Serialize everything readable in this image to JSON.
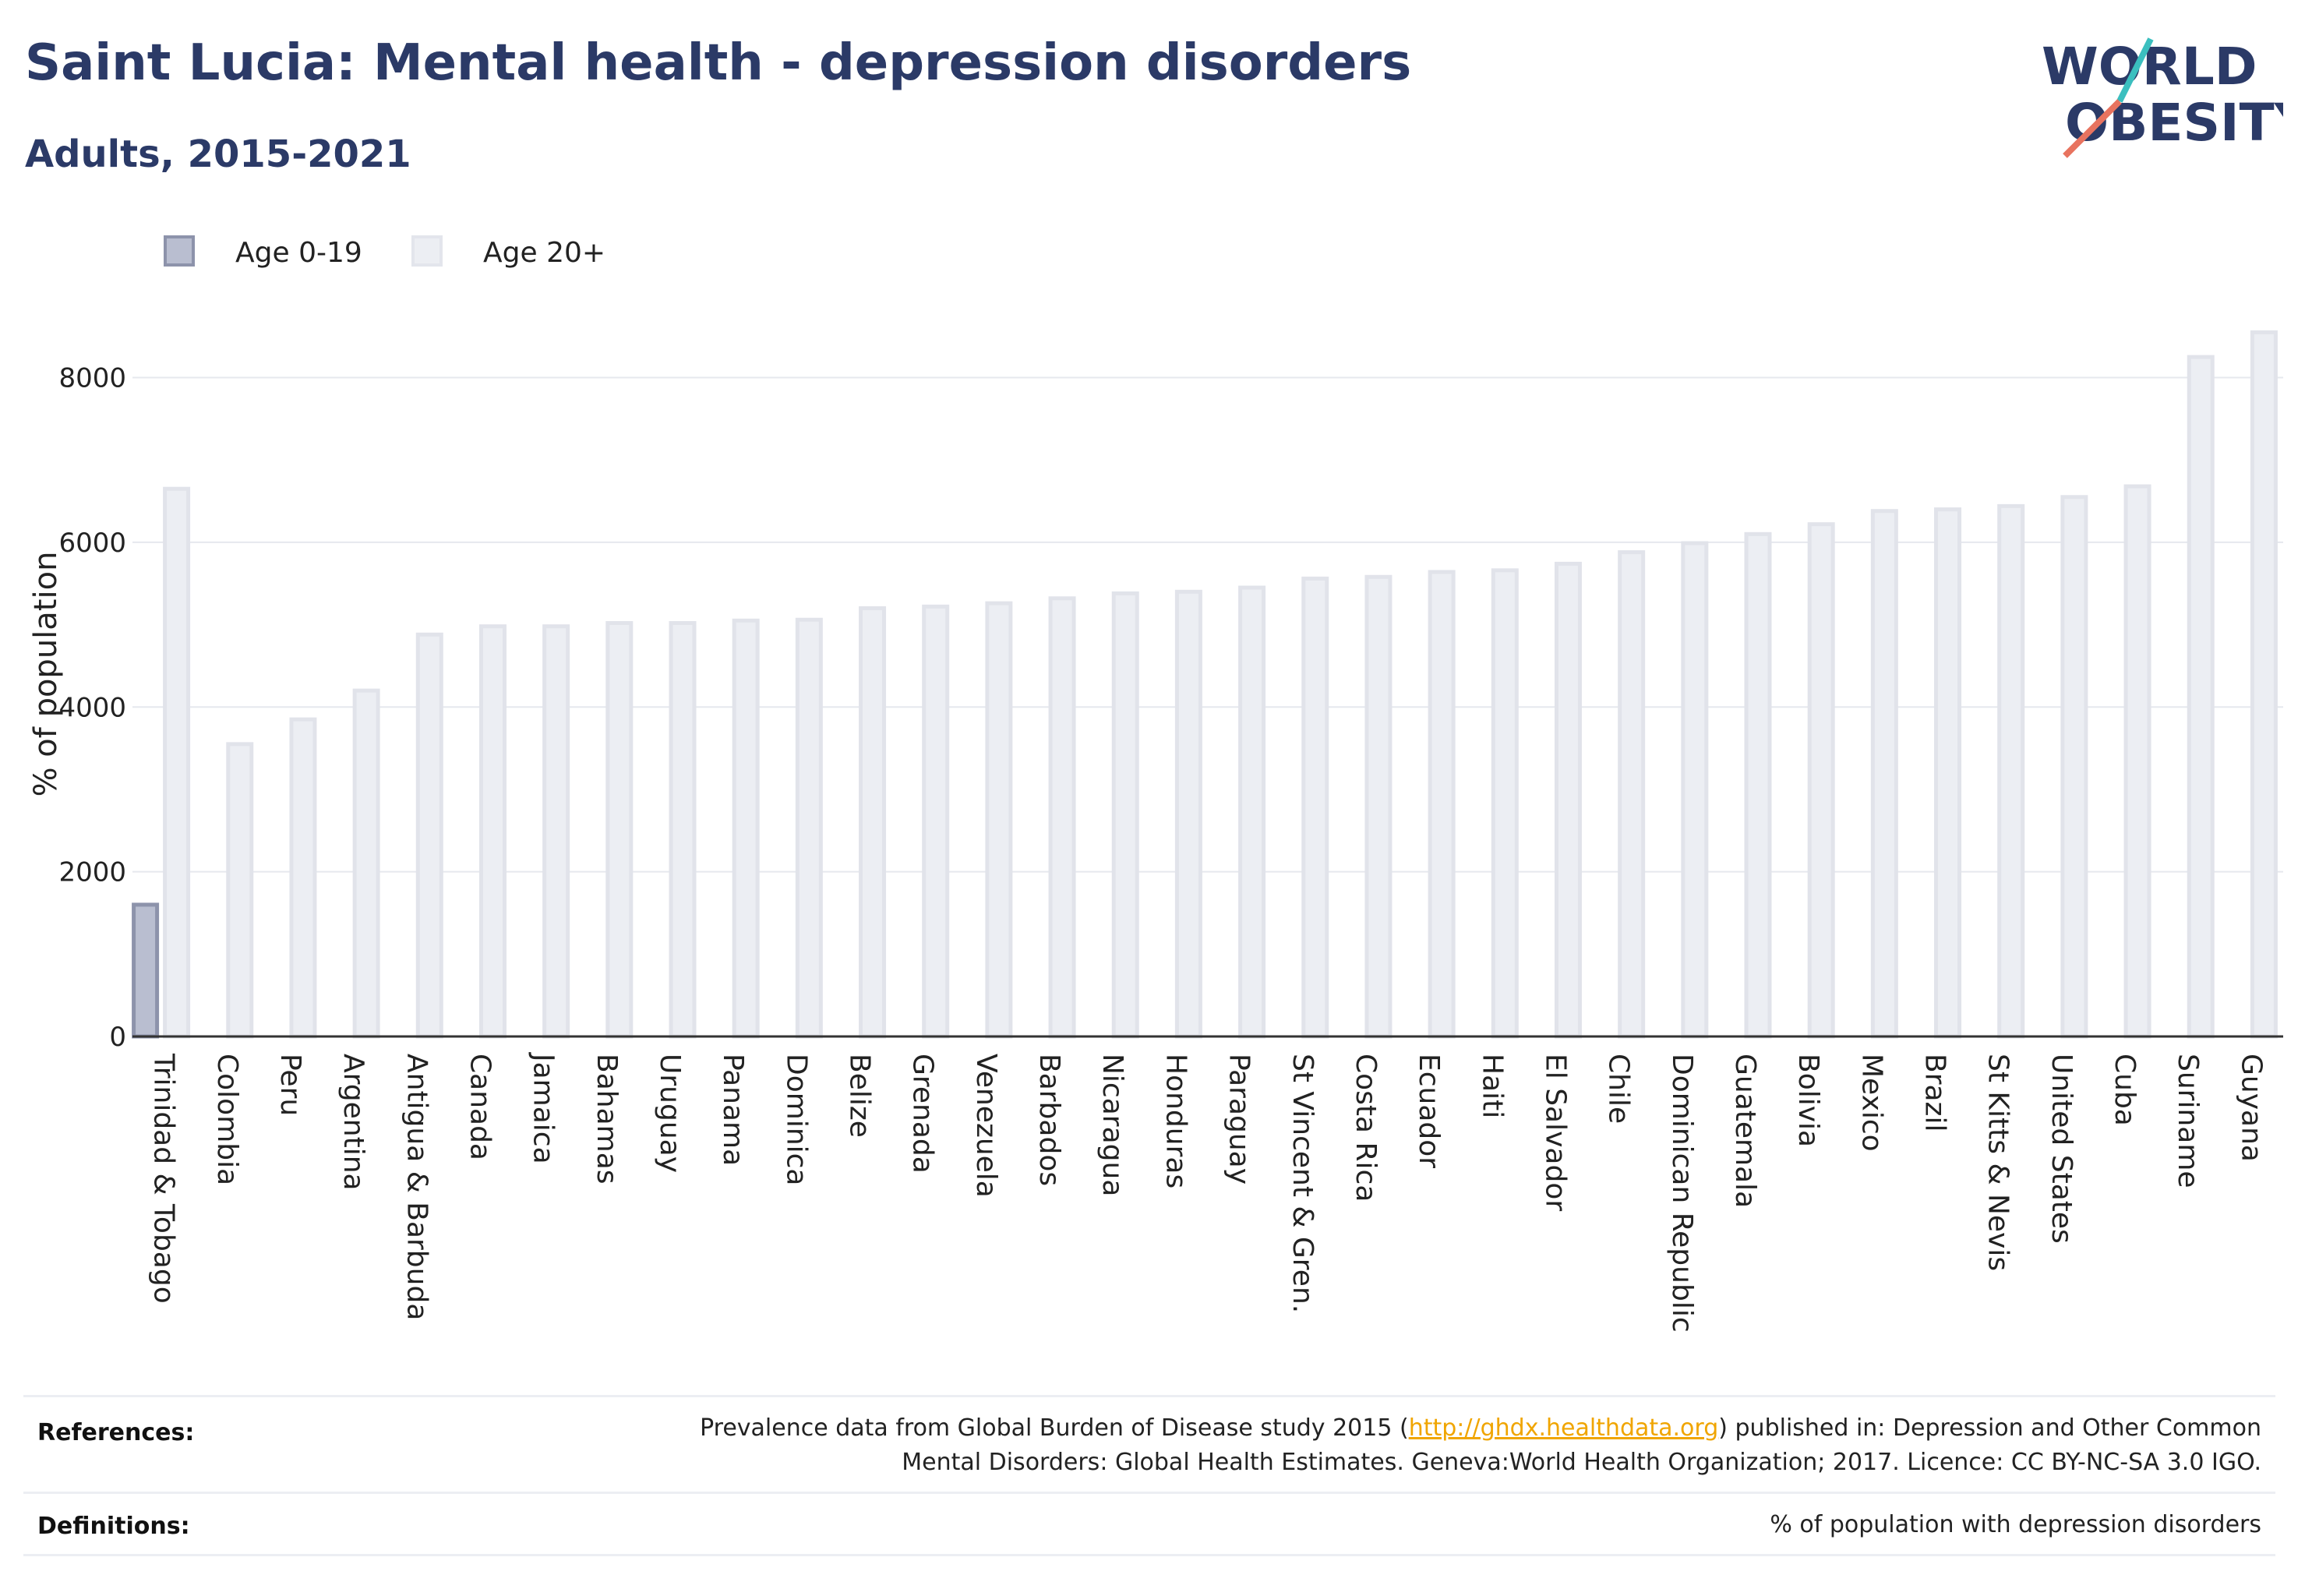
{
  "header": {
    "title": "Saint Lucia: Mental health - depression disorders",
    "subtitle": "Adults, 2015-2021"
  },
  "logo": {
    "line1": "WORLD",
    "line2": "OBESITY",
    "accent_teal": "#3bbfbf",
    "accent_coral": "#e8735f",
    "text_color": "#2b3a67"
  },
  "legend": {
    "items": [
      {
        "label": "Age 0-19",
        "color": "#9aa1b9"
      },
      {
        "label": "Age 20+",
        "color": "#e9ebf0"
      }
    ]
  },
  "chart_data": {
    "type": "bar",
    "ylabel": "% of population",
    "xlabel": "",
    "ylim": [
      0,
      8800
    ],
    "yticks": [
      0,
      2000,
      4000,
      6000,
      8000
    ],
    "grid": true,
    "legend_position": "top-left",
    "categories": [
      "Trinidad & Tobago",
      "Colombia",
      "Peru",
      "Argentina",
      "Antigua & Barbuda",
      "Canada",
      "Jamaica",
      "Bahamas",
      "Uruguay",
      "Panama",
      "Dominica",
      "Belize",
      "Grenada",
      "Venezuela",
      "Barbados",
      "Nicaragua",
      "Honduras",
      "Paraguay",
      "St Vincent & Gren.",
      "Costa Rica",
      "Ecuador",
      "Haiti",
      "El Salvador",
      "Chile",
      "Dominican Republic",
      "Guatemala",
      "Bolivia",
      "Mexico",
      "Brazil",
      "St Kitts & Nevis",
      "United States",
      "Cuba",
      "Suriname",
      "Guyana"
    ],
    "series": [
      {
        "name": "Age 0-19",
        "color": "#9aa1b9",
        "values": [
          1600,
          null,
          null,
          null,
          null,
          null,
          null,
          null,
          null,
          null,
          null,
          null,
          null,
          null,
          null,
          null,
          null,
          null,
          null,
          null,
          null,
          null,
          null,
          null,
          null,
          null,
          null,
          null,
          null,
          null,
          null,
          null,
          null,
          null
        ]
      },
      {
        "name": "Age 20+",
        "color": "#e9ebf0",
        "values": [
          6650,
          3550,
          3850,
          4200,
          4880,
          4980,
          4980,
          5020,
          5020,
          5050,
          5060,
          5200,
          5220,
          5260,
          5320,
          5380,
          5400,
          5450,
          5560,
          5580,
          5640,
          5660,
          5740,
          5880,
          5990,
          6100,
          6220,
          6380,
          6400,
          6440,
          6550,
          6680,
          8250,
          8550
        ]
      }
    ]
  },
  "footer": {
    "references_label": "References:",
    "references_pre": "Prevalence data from Global Burden of Disease study 2015 (",
    "references_link": "http://ghdx.healthdata.org",
    "references_post": ") published in: Depression and Other Common",
    "references_line2": "Mental Disorders: Global Health Estimates. Geneva:World Health Organization; 2017. Licence: CC BY-NC-SA 3.0 IGO.",
    "definitions_label": "Definitions:",
    "definitions_text": "% of population with depression disorders"
  }
}
